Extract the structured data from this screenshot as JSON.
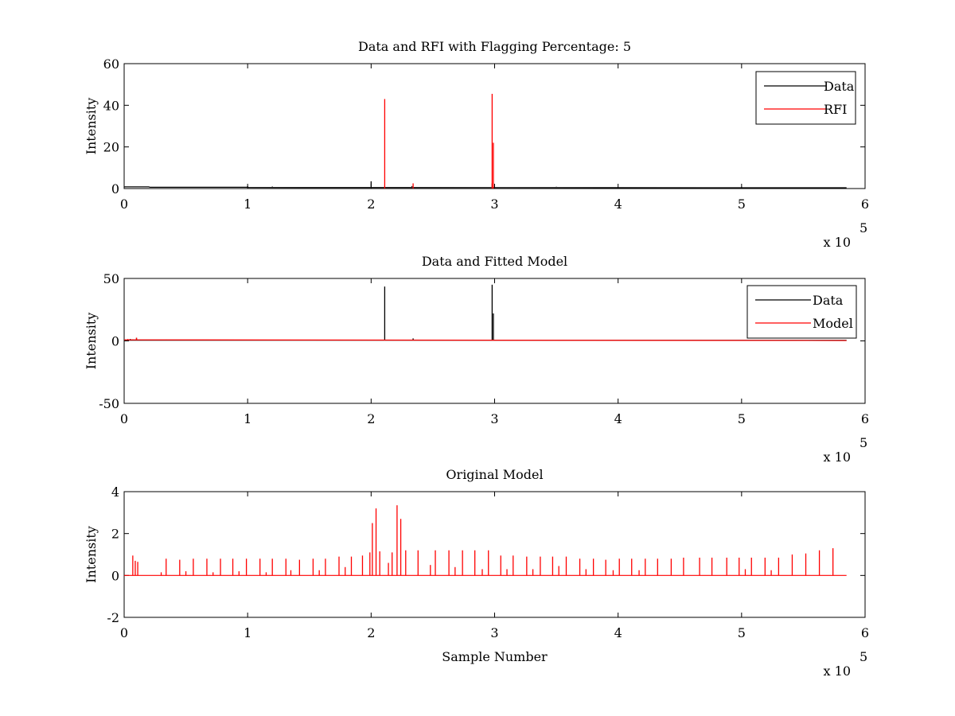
{
  "chart_data": [
    {
      "type": "line",
      "title": "Data and RFI with Flagging Percentage: 5",
      "xlabel": "",
      "ylabel": "Intensity",
      "xlim": [
        0,
        600000
      ],
      "ylim": [
        0,
        60
      ],
      "xticks": [
        0,
        1,
        2,
        3,
        4,
        5,
        6
      ],
      "yticks": [
        0,
        20,
        40,
        60
      ],
      "x_exponent_label": "x 10",
      "x_exponent_power": "5",
      "legend": {
        "position": "top-right",
        "entries": [
          "Data",
          "RFI"
        ]
      },
      "series": [
        {
          "name": "Data",
          "color": "#000000",
          "baseline": [
            [
              0,
              0.8
            ],
            [
              20000,
              0.8
            ],
            [
              21000,
              0.6
            ],
            [
              100000,
              0.6
            ],
            [
              101000,
              0.5
            ],
            [
              585000,
              0.4
            ]
          ],
          "spikes": [
            [
              100000,
              1.2
            ],
            [
              120000,
              1.0
            ],
            [
              200000,
              3.5
            ],
            [
              233000,
              1.2
            ],
            [
              298000,
              2.5
            ],
            [
              350000,
              0.9
            ],
            [
              450000,
              0.8
            ],
            [
              500000,
              0.7
            ]
          ]
        },
        {
          "name": "RFI",
          "color": "#ff0000",
          "baseline": [],
          "spikes": [
            [
              211000,
              43
            ],
            [
              234000,
              2.5
            ],
            [
              298000,
              45.5
            ],
            [
              299000,
              22
            ]
          ]
        }
      ]
    },
    {
      "type": "line",
      "title": "Data and Fitted Model",
      "xlabel": "",
      "ylabel": "Intensity",
      "xlim": [
        0,
        600000
      ],
      "ylim": [
        -50,
        50
      ],
      "xticks": [
        0,
        1,
        2,
        3,
        4,
        5,
        6
      ],
      "yticks": [
        -50,
        0,
        50
      ],
      "x_exponent_label": "x 10",
      "x_exponent_power": "5",
      "legend": {
        "position": "top-right",
        "entries": [
          "Data",
          "Model"
        ]
      },
      "series": [
        {
          "name": "Data",
          "color": "#000000",
          "baseline": [
            [
              0,
              0.5
            ],
            [
              585000,
              0.5
            ]
          ],
          "spikes": [
            [
              5000,
              1.5
            ],
            [
              10000,
              2.5
            ],
            [
              211000,
              43.5
            ],
            [
              234000,
              2.0
            ],
            [
              298000,
              45.0
            ],
            [
              299000,
              22.0
            ]
          ]
        },
        {
          "name": "Model",
          "color": "#ff0000",
          "baseline": [
            [
              0,
              0.8
            ],
            [
              585000,
              0.3
            ]
          ],
          "spikes": [
            [
              3000,
              1.5
            ],
            [
              7000,
              1.2
            ],
            [
              10000,
              2.5
            ],
            [
              34000,
              1.0
            ],
            [
              45000,
              0.8
            ],
            [
              67000,
              0.8
            ]
          ]
        }
      ]
    },
    {
      "type": "line",
      "title": "Original Model",
      "xlabel": "Sample Number",
      "ylabel": "Intensity",
      "xlim": [
        0,
        600000
      ],
      "ylim": [
        -2,
        4
      ],
      "xticks": [
        0,
        1,
        2,
        3,
        4,
        5,
        6
      ],
      "yticks": [
        -2,
        0,
        2,
        4
      ],
      "x_exponent_label": "x 10",
      "x_exponent_power": "5",
      "legend": null,
      "series": [
        {
          "color": "#ff0000",
          "baseline": [
            [
              0,
              0
            ],
            [
              585000,
              0
            ]
          ],
          "spikes": [
            [
              7000,
              0.95
            ],
            [
              9000,
              0.7
            ],
            [
              11000,
              0.65
            ],
            [
              30000,
              0.15
            ],
            [
              34000,
              0.8
            ],
            [
              45000,
              0.75
            ],
            [
              50000,
              0.2
            ],
            [
              56000,
              0.8
            ],
            [
              67000,
              0.8
            ],
            [
              72000,
              0.15
            ],
            [
              78000,
              0.8
            ],
            [
              88000,
              0.8
            ],
            [
              93000,
              0.2
            ],
            [
              99000,
              0.8
            ],
            [
              110000,
              0.8
            ],
            [
              115000,
              0.15
            ],
            [
              120000,
              0.8
            ],
            [
              131000,
              0.8
            ],
            [
              135000,
              0.25
            ],
            [
              142000,
              0.75
            ],
            [
              153000,
              0.8
            ],
            [
              158000,
              0.25
            ],
            [
              163000,
              0.8
            ],
            [
              174000,
              0.9
            ],
            [
              179000,
              0.4
            ],
            [
              184000,
              0.9
            ],
            [
              193000,
              0.95
            ],
            [
              199000,
              1.1
            ],
            [
              201000,
              2.5
            ],
            [
              204000,
              3.2
            ],
            [
              207000,
              1.15
            ],
            [
              214000,
              0.6
            ],
            [
              217000,
              1.1
            ],
            [
              221000,
              3.35
            ],
            [
              224000,
              2.7
            ],
            [
              228000,
              1.2
            ],
            [
              238000,
              1.2
            ],
            [
              248000,
              0.5
            ],
            [
              252000,
              1.2
            ],
            [
              263000,
              1.2
            ],
            [
              268000,
              0.4
            ],
            [
              274000,
              1.2
            ],
            [
              284000,
              1.2
            ],
            [
              290000,
              0.3
            ],
            [
              295000,
              1.2
            ],
            [
              305000,
              0.95
            ],
            [
              310000,
              0.3
            ],
            [
              315000,
              0.95
            ],
            [
              326000,
              0.9
            ],
            [
              331000,
              0.3
            ],
            [
              337000,
              0.9
            ],
            [
              347000,
              0.9
            ],
            [
              352000,
              0.45
            ],
            [
              358000,
              0.9
            ],
            [
              369000,
              0.8
            ],
            [
              374000,
              0.3
            ],
            [
              380000,
              0.8
            ],
            [
              390000,
              0.75
            ],
            [
              396000,
              0.25
            ],
            [
              401000,
              0.8
            ],
            [
              411000,
              0.8
            ],
            [
              417000,
              0.25
            ],
            [
              422000,
              0.8
            ],
            [
              432000,
              0.8
            ],
            [
              443000,
              0.8
            ],
            [
              453000,
              0.85
            ],
            [
              466000,
              0.85
            ],
            [
              476000,
              0.85
            ],
            [
              488000,
              0.85
            ],
            [
              498000,
              0.85
            ],
            [
              503000,
              0.3
            ],
            [
              508000,
              0.85
            ],
            [
              519000,
              0.85
            ],
            [
              524000,
              0.25
            ],
            [
              530000,
              0.85
            ],
            [
              541000,
              1.0
            ],
            [
              552000,
              1.05
            ],
            [
              563000,
              1.2
            ],
            [
              574000,
              1.3
            ]
          ]
        }
      ]
    }
  ]
}
